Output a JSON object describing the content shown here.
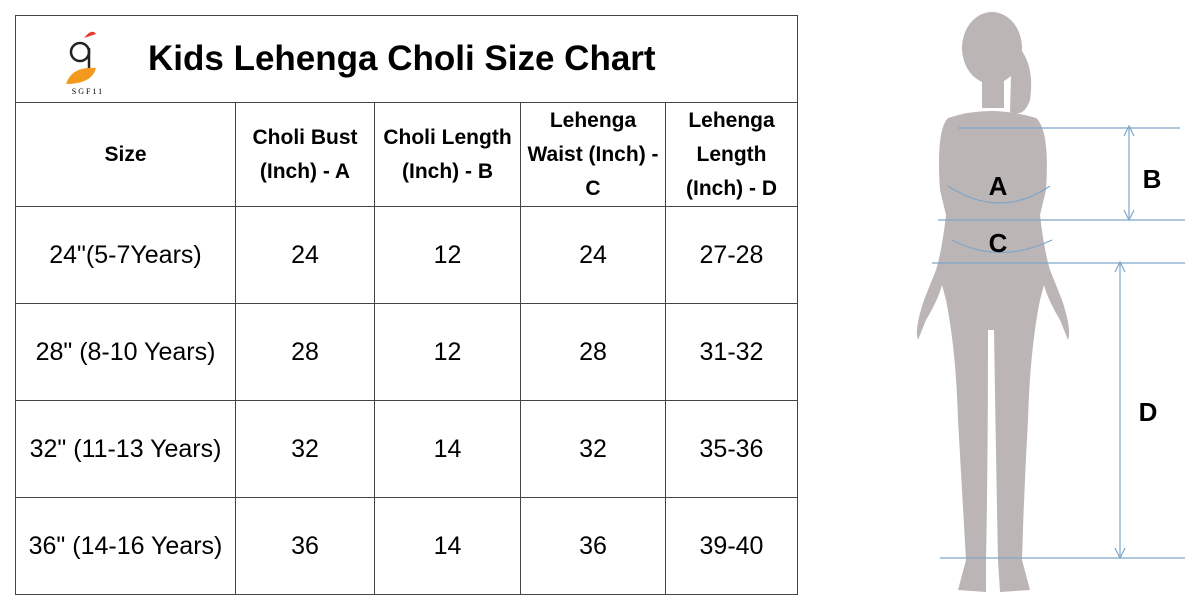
{
  "header": {
    "title": "Kids Lehenga Choli Size Chart",
    "logo_text": "SGF11"
  },
  "table": {
    "columns": [
      "Size",
      "Choli Bust (Inch) - A",
      "Choli Length (Inch) - B",
      "Lehenga Waist (Inch) - C",
      "Lehenga Length (Inch) - D"
    ],
    "rows": [
      [
        "24\"(5-7Years)",
        "24",
        "12",
        "24",
        "27-28"
      ],
      [
        "28\" (8-10 Years)",
        "28",
        "12",
        "28",
        "31-32"
      ],
      [
        "32\" (11-13 Years)",
        "32",
        "14",
        "32",
        "35-36"
      ],
      [
        "36\" (14-16 Years)",
        "36",
        "14",
        "36",
        "39-40"
      ]
    ]
  },
  "figure": {
    "labels": {
      "a": "A",
      "b": "B",
      "c": "C",
      "d": "D"
    }
  }
}
